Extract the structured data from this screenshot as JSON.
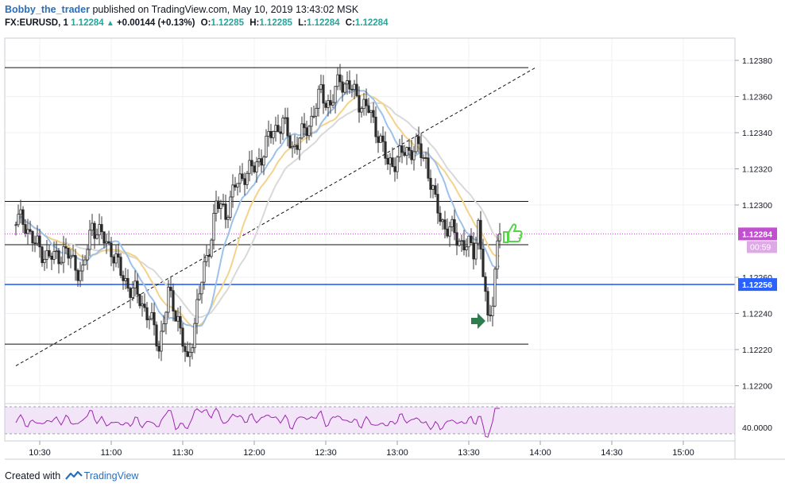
{
  "header": {
    "user": "Bobby_the_trader",
    "published": "published on TradingView.com, May 10, 2019 13:43:02 MSK",
    "symbol": "FX:EURUSD, 1",
    "last": "1.12284",
    "change": "+0.00144 (+0.13%)",
    "o_label": "O:",
    "o_value": "1.12285",
    "h_label": "H:",
    "h_value": "1.12285",
    "l_label": "L:",
    "l_value": "1.12284",
    "c_label": "C:",
    "c_value": "1.12284"
  },
  "footer": {
    "created_with": "Created with",
    "brand": "TradingView"
  },
  "colors": {
    "up_candle": "#ffffff",
    "down_candle": "#2b2b2b",
    "wick": "#3a3a3a",
    "ma_fast": "#9ec1ea",
    "ma_mid": "#f3d38a",
    "ma_slow": "#d9d9d9",
    "hline_blue": "#2962ff",
    "last_price_label": "#c24fcf",
    "rsi_line": "#9c27b0",
    "rsi_bg": "#f3e5f8",
    "arrow_green": "#2e7d4f",
    "thumb_green": "#56d44a"
  },
  "chart_data": {
    "type": "candlestick",
    "x_ticks": [
      "10:30",
      "11:00",
      "11:30",
      "12:00",
      "12:30",
      "13:00",
      "13:30",
      "14:00",
      "14:30",
      "15:00"
    ],
    "y_ticks": [
      "1.12380",
      "1.12360",
      "1.12340",
      "1.12320",
      "1.12300",
      "1.12260",
      "1.12240",
      "1.12220",
      "1.12200"
    ],
    "ylim": [
      1.1219,
      1.1239
    ],
    "last_price_label": "1.12284",
    "countdown_label": "00:59",
    "blue_line_label": "1.12256",
    "blue_line_value": 1.12256,
    "horizontal_levels": [
      1.12376,
      1.12302,
      1.12278,
      1.12223
    ],
    "trendline": {
      "from": [
        "10:20",
        1.12211
      ],
      "to": [
        "13:58",
        1.12376
      ]
    },
    "rsi_tick_label": "40.0000",
    "candles_hlc_anchors_close": [
      [
        "10:20",
        1.12292
      ],
      [
        "10:24",
        1.1229
      ],
      [
        "10:28",
        1.12278
      ],
      [
        "10:32",
        1.12273
      ],
      [
        "10:36",
        1.1227
      ],
      [
        "10:40",
        1.12275
      ],
      [
        "10:44",
        1.12268
      ],
      [
        "10:48",
        1.12262
      ],
      [
        "10:52",
        1.1229
      ],
      [
        "10:56",
        1.12282
      ],
      [
        "11:00",
        1.12276
      ],
      [
        "11:04",
        1.12262
      ],
      [
        "11:08",
        1.12254
      ],
      [
        "11:12",
        1.12248
      ],
      [
        "11:16",
        1.12238
      ],
      [
        "11:20",
        1.12222
      ],
      [
        "11:24",
        1.1225
      ],
      [
        "11:28",
        1.12238
      ],
      [
        "11:32",
        1.1221
      ],
      [
        "11:36",
        1.12245
      ],
      [
        "11:40",
        1.1227
      ],
      [
        "11:44",
        1.123
      ],
      [
        "11:48",
        1.12296
      ],
      [
        "11:52",
        1.1231
      ],
      [
        "11:56",
        1.12318
      ],
      [
        "12:00",
        1.1232
      ],
      [
        "12:04",
        1.1233
      ],
      [
        "12:08",
        1.12342
      ],
      [
        "12:12",
        1.12345
      ],
      [
        "12:16",
        1.12332
      ],
      [
        "12:20",
        1.12338
      ],
      [
        "12:24",
        1.12348
      ],
      [
        "12:28",
        1.12362
      ],
      [
        "12:32",
        1.12355
      ],
      [
        "12:36",
        1.1237
      ],
      [
        "12:40",
        1.12365
      ],
      [
        "12:44",
        1.12358
      ],
      [
        "12:48",
        1.12352
      ],
      [
        "12:52",
        1.1234
      ],
      [
        "12:56",
        1.12322
      ],
      [
        "13:00",
        1.12326
      ],
      [
        "13:04",
        1.1233
      ],
      [
        "13:08",
        1.12332
      ],
      [
        "13:12",
        1.12325
      ],
      [
        "13:16",
        1.123
      ],
      [
        "13:20",
        1.12288
      ],
      [
        "13:24",
        1.12284
      ],
      [
        "13:28",
        1.12278
      ],
      [
        "13:32",
        1.12275
      ],
      [
        "13:34",
        1.1229
      ],
      [
        "13:36",
        1.12262
      ],
      [
        "13:38",
        1.12234
      ],
      [
        "13:40",
        1.1225
      ],
      [
        "13:42",
        1.12278
      ],
      [
        "13:43",
        1.12284
      ]
    ],
    "series": [
      {
        "values": "moving averages and RSI drawn as lines"
      }
    ]
  }
}
